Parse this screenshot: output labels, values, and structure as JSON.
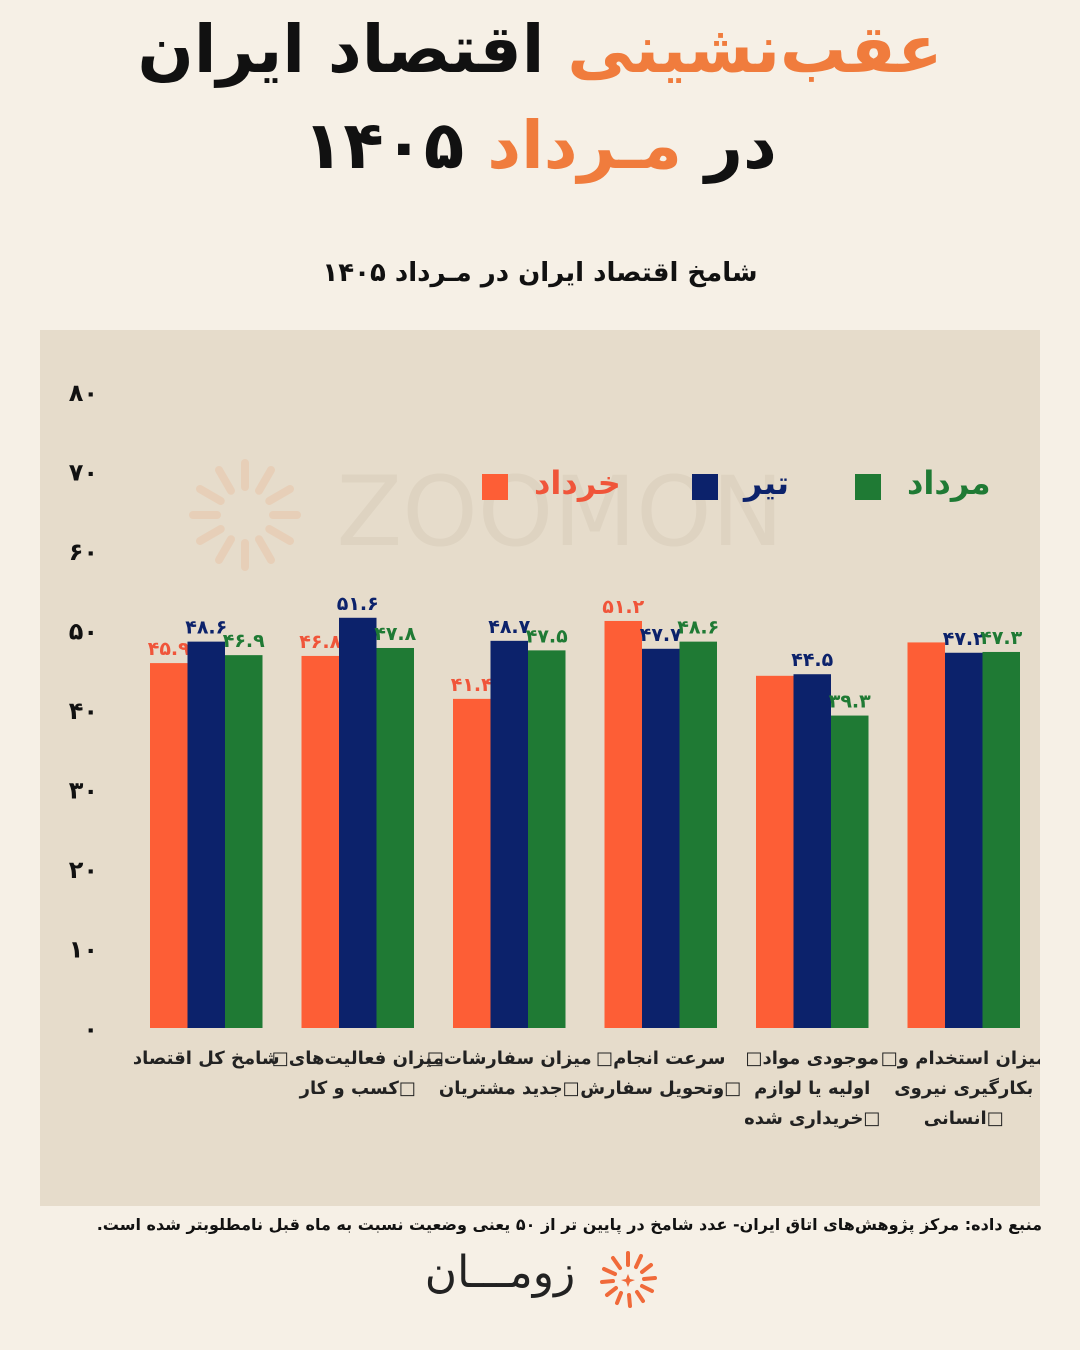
{
  "header": {
    "title_line1_accent": "عقب‌نشینی",
    "title_line1_rest": "اقتصاد ایران",
    "title_line2_prefix": "در",
    "title_line2_accent": "مـرداد",
    "title_line2_year": "۱۴۰۵"
  },
  "chart_data": {
    "type": "bar",
    "title": "شامخ اقتصاد ایران در مـرداد ۱۴۰۵",
    "xlabel": "",
    "ylabel": "",
    "ylim": [
      0,
      80
    ],
    "yticks": [
      "۰",
      "۱۰",
      "۲۰",
      "۳۰",
      "۴۰",
      "۵۰",
      "۶۰",
      "۷۰",
      "۸۰"
    ],
    "grid": false,
    "legend_position": "top",
    "categories": [
      [
        "شامخ کل اقتصاد"
      ],
      [
        "□میزان فعالیت‌های",
        "کسب و کار□"
      ],
      [
        "□میزان سفارشات",
        "جدید مشتریان□"
      ],
      [
        "□سرعت انجام",
        "وتحویل سفارش□"
      ],
      [
        "□موجودی مواد",
        "اولیه یا لوازم",
        "خریداری شده□"
      ],
      [
        "□میزان استخدام و",
        "بکارگیری نیروی",
        "انسانی□"
      ]
    ],
    "series": [
      {
        "name": "خرداد",
        "color": "#fd5e36",
        "label_color": "#f0553a",
        "values": [
          45.9,
          46.8,
          41.4,
          51.2,
          44.3,
          48.5
        ],
        "labels": [
          "۴۵.۹",
          "۴۶.۸",
          "۴۱.۴",
          "۵۱.۲",
          "",
          ""
        ]
      },
      {
        "name": "تیر",
        "color": "#0c226b",
        "label_color": "#0c226b",
        "values": [
          48.6,
          51.6,
          48.7,
          47.7,
          44.5,
          47.2
        ],
        "labels": [
          "۴۸.۶",
          "۵۱.۶",
          "۴۸.۷",
          "۴۷.۷",
          "۴۴.۵",
          "۴۷.۲"
        ]
      },
      {
        "name": "مرداد",
        "color": "#1f7a34",
        "label_color": "#1f7a34",
        "values": [
          46.9,
          47.8,
          47.5,
          48.6,
          39.3,
          47.3
        ],
        "labels": [
          "۴۶.۹",
          "۴۷.۸",
          "۴۷.۵",
          "۴۸.۶",
          "۳۹.۳",
          "۴۷.۳"
        ]
      }
    ],
    "watermark": "ZOOMON"
  },
  "footer": {
    "source_label": "منبع داده:",
    "source_text": "مرکز پژوهش‌های اتاق ایران- عدد شامخ در پایین تر از ۵۰ یعنی وضعیت نسبت به ماه قبل نامطلوبتر شده است.",
    "logo_text": "زومـــان"
  },
  "colors": {
    "accent": "#f07c3d",
    "background": "#f6f0e6",
    "panel": "#e6dccb"
  }
}
